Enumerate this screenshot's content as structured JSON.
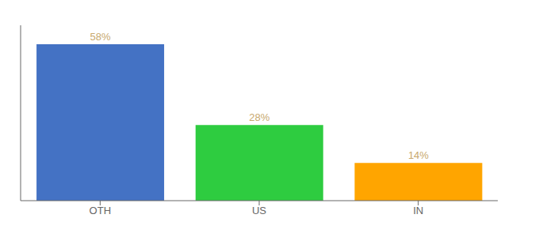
{
  "chart_data": {
    "type": "bar",
    "categories": [
      "OTH",
      "US",
      "IN"
    ],
    "values": [
      58,
      28,
      14
    ],
    "value_labels": [
      "58%",
      "28%",
      "14%"
    ],
    "colors": [
      "#4472C4",
      "#2ECC40",
      "#FFA500"
    ],
    "ylim": [
      0,
      65
    ],
    "data_labels": true,
    "tick_labels": "x",
    "grid": false
  }
}
